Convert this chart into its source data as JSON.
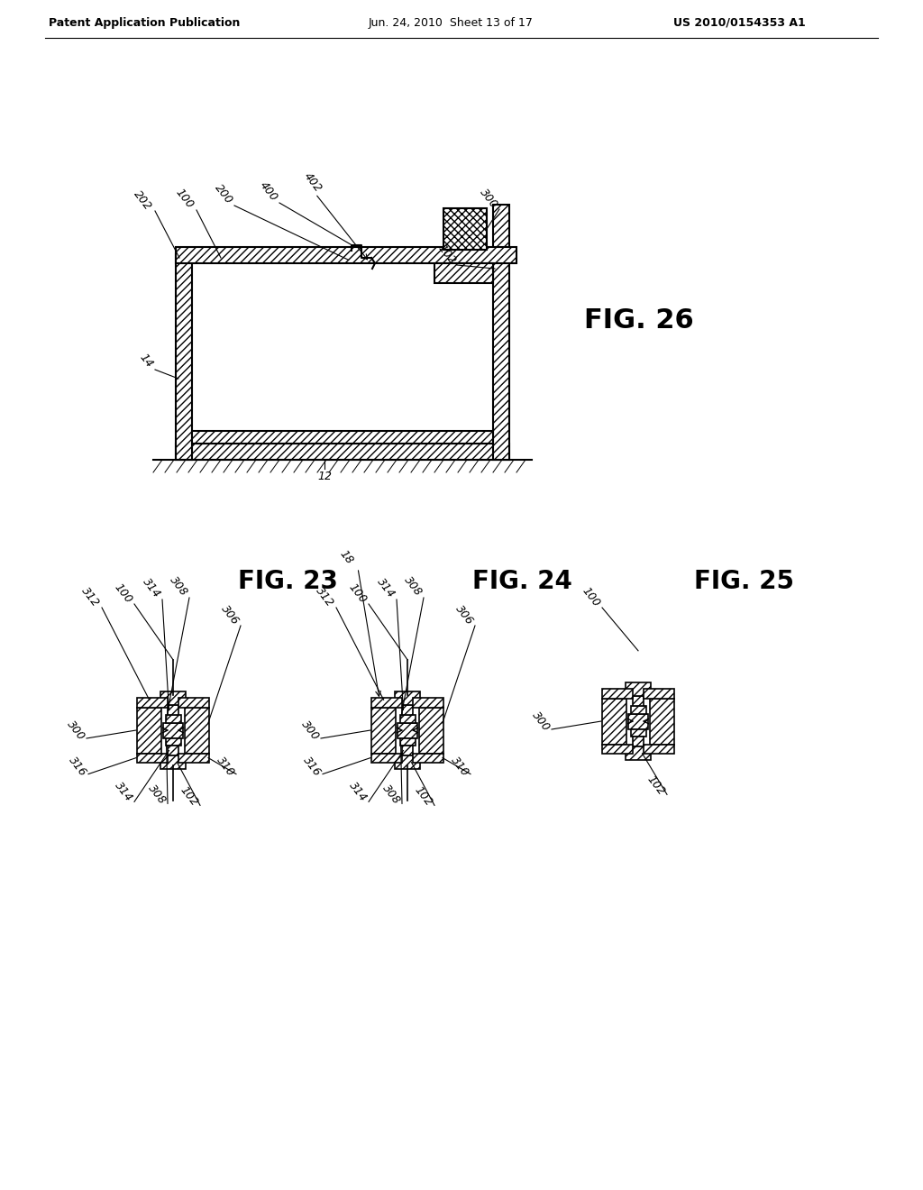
{
  "bg_color": "#ffffff",
  "header_left": "Patent Application Publication",
  "header_center": "Jun. 24, 2010  Sheet 13 of 17",
  "header_right": "US 2010/0154353 A1",
  "fig26_label": "FIG. 26",
  "fig23_label": "FIG. 23",
  "fig24_label": "FIG. 24",
  "fig25_label": "FIG. 25",
  "line_color": "#000000"
}
